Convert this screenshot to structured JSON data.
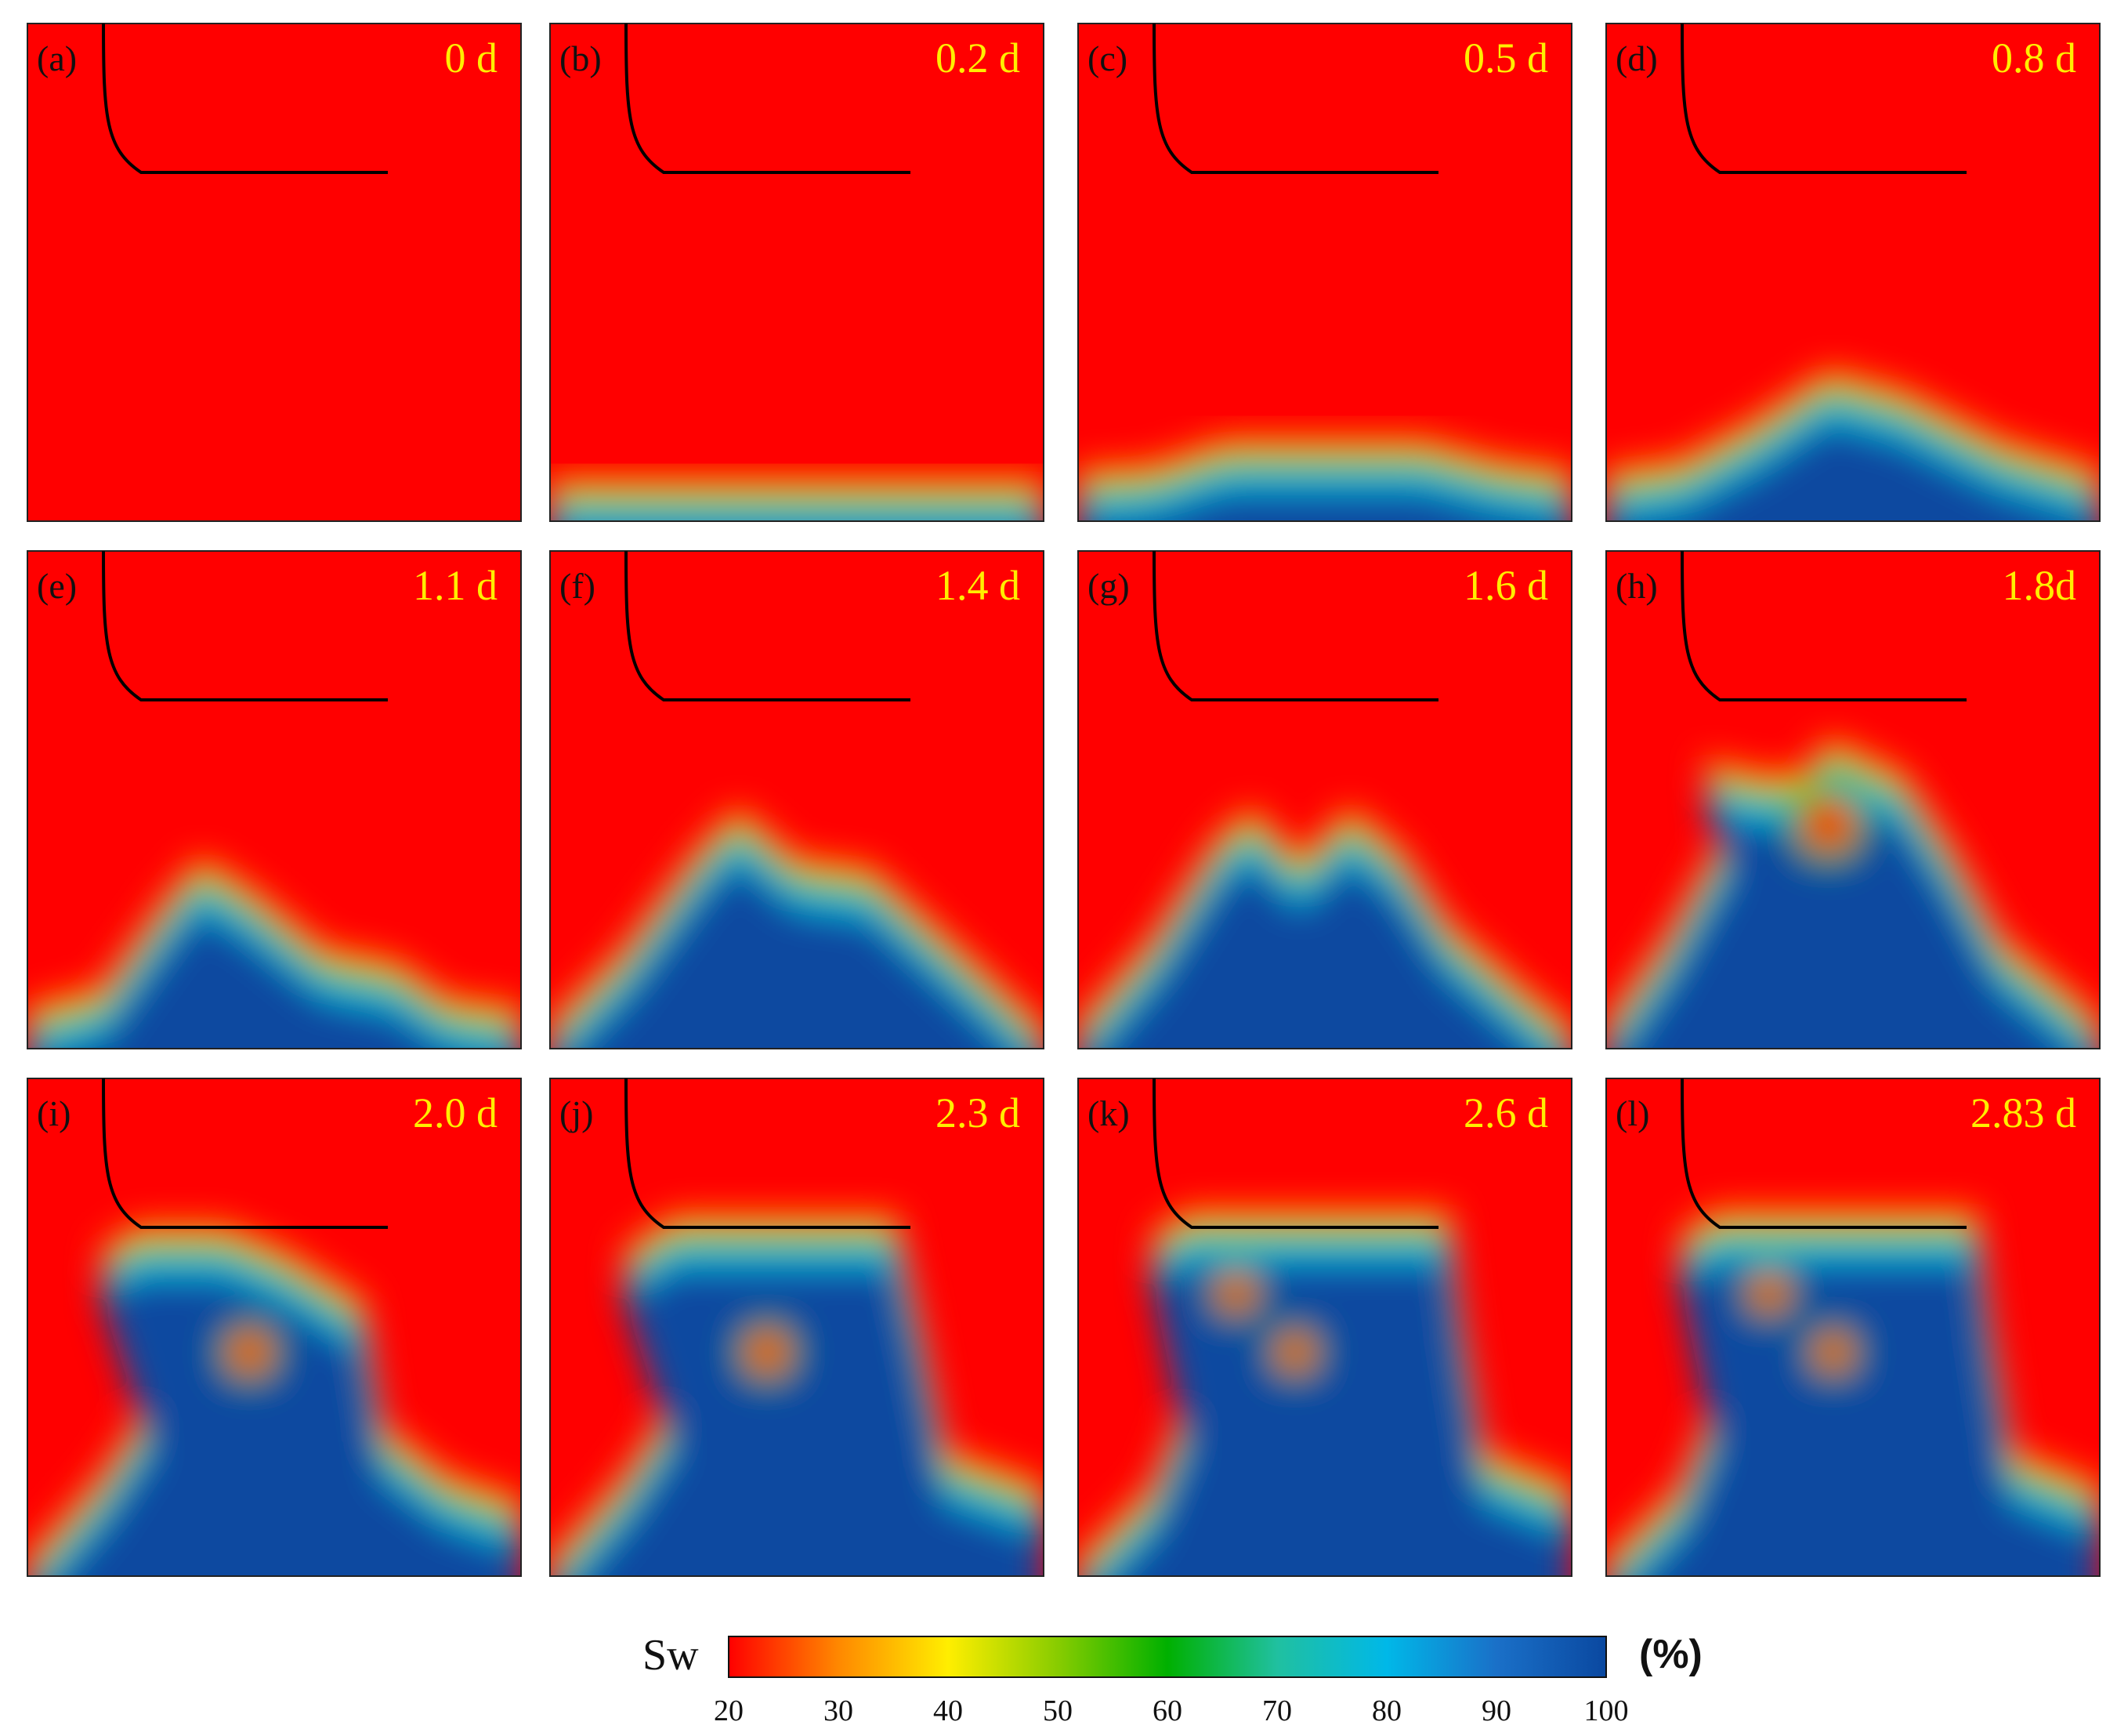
{
  "panels": [
    {
      "label": "(a)",
      "time": "0 d"
    },
    {
      "label": "(b)",
      "time": "0.2 d"
    },
    {
      "label": "(c)",
      "time": "0.5 d"
    },
    {
      "label": "(d)",
      "time": "0.8 d"
    },
    {
      "label": "(e)",
      "time": "1.1 d"
    },
    {
      "label": "(f)",
      "time": "1.4 d"
    },
    {
      "label": "(g)",
      "time": "1.6 d"
    },
    {
      "label": "(h)",
      "time": "1.8d"
    },
    {
      "label": "(i)",
      "time": "2.0 d"
    },
    {
      "label": "(j)",
      "time": "2.3 d"
    },
    {
      "label": "(k)",
      "time": "2.6 d"
    },
    {
      "label": "(l)",
      "time": "2.83 d"
    }
  ],
  "colorbar": {
    "title": "Sw",
    "unit": "(%)",
    "ticks": [
      "20",
      "30",
      "40",
      "50",
      "60",
      "70",
      "80",
      "90",
      "100"
    ],
    "colors": [
      "#ff0000",
      "#ff8800",
      "#ffee00",
      "#88cc00",
      "#00b000",
      "#20c0a0",
      "#00b8e8",
      "#1a70c8",
      "#0a48a0"
    ]
  },
  "colors": {
    "background_oil": "#ff0000",
    "water": "#0a48a0",
    "well": "#000000",
    "time_label": "#ffee00"
  }
}
